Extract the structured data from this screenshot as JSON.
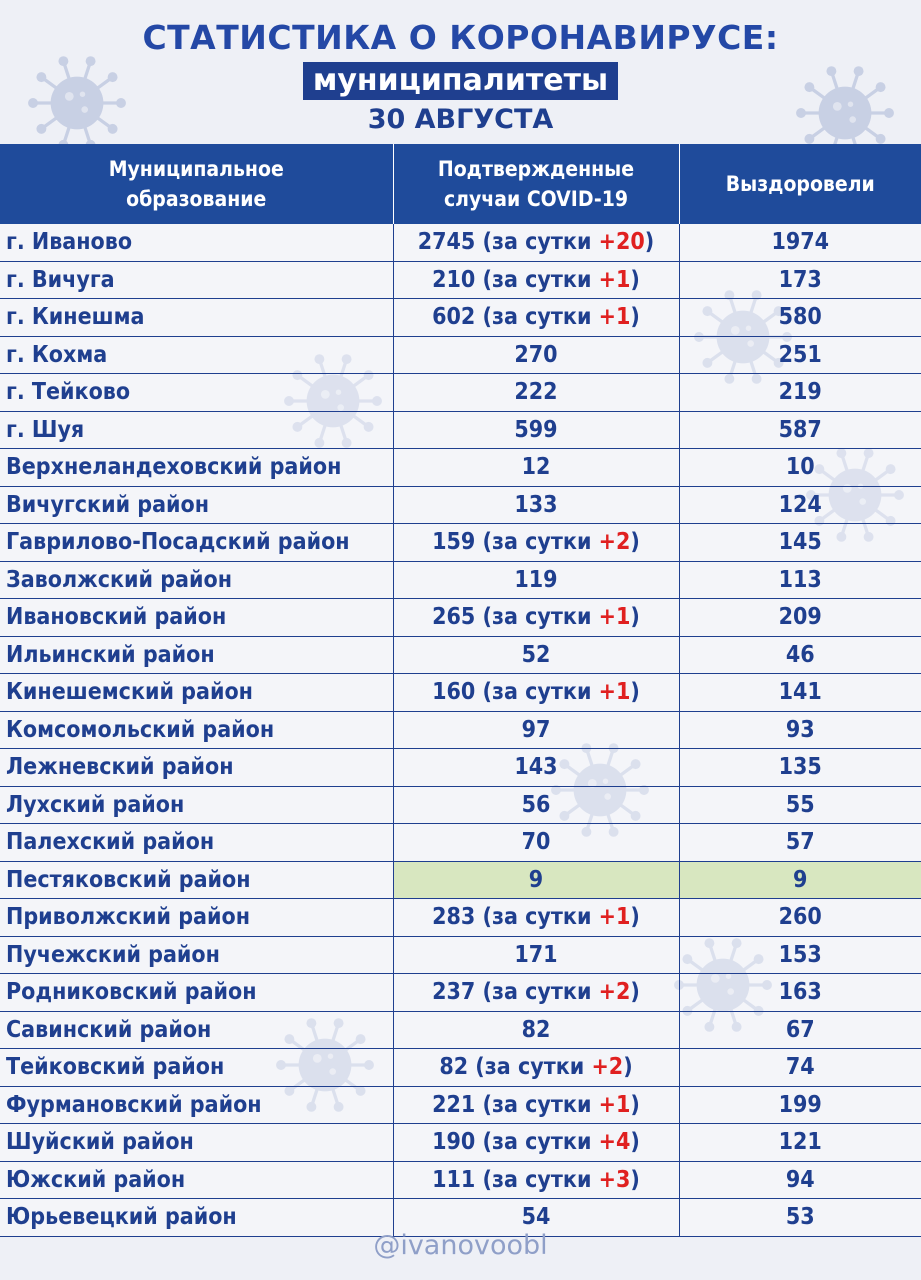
{
  "header": {
    "title": "СТАТИСТИКА О КОРОНАВИРУСЕ:",
    "subtitle": "муниципалитеты",
    "date": "30 АВГУСТА"
  },
  "table": {
    "columns": [
      "Муниципальное образование",
      "Подтвержденные случаи COVID-19",
      "Выздоровели"
    ],
    "daily_prefix": "за сутки",
    "rows": [
      {
        "name": "г. Иваново",
        "cases": "2745",
        "daily": "+20",
        "recovered": "1974"
      },
      {
        "name": "г. Вичуга",
        "cases": "210",
        "daily": "+1",
        "recovered": "173"
      },
      {
        "name": "г. Кинешма",
        "cases": "602",
        "daily": "+1",
        "recovered": "580"
      },
      {
        "name": "г. Кохма",
        "cases": "270",
        "daily": "",
        "recovered": "251"
      },
      {
        "name": "г. Тейково",
        "cases": "222",
        "daily": "",
        "recovered": "219"
      },
      {
        "name": "г. Шуя",
        "cases": "599",
        "daily": "",
        "recovered": "587"
      },
      {
        "name": "Верхнеландеховский район",
        "cases": "12",
        "daily": "",
        "recovered": "10"
      },
      {
        "name": "Вичугский район",
        "cases": "133",
        "daily": "",
        "recovered": "124"
      },
      {
        "name": "Гаврилово-Посадский район",
        "cases": "159",
        "daily": "+2",
        "recovered": "145"
      },
      {
        "name": "Заволжский район",
        "cases": "119",
        "daily": "",
        "recovered": "113"
      },
      {
        "name": "Ивановский район",
        "cases": "265",
        "daily": "+1",
        "recovered": "209"
      },
      {
        "name": "Ильинский район",
        "cases": "52",
        "daily": "",
        "recovered": "46"
      },
      {
        "name": "Кинешемский район",
        "cases": "160",
        "daily": "+1",
        "recovered": "141"
      },
      {
        "name": "Комсомольский район",
        "cases": "97",
        "daily": "",
        "recovered": "93"
      },
      {
        "name": "Лежневский район",
        "cases": "143",
        "daily": "",
        "recovered": "135"
      },
      {
        "name": "Лухский район",
        "cases": "56",
        "daily": "",
        "recovered": "55"
      },
      {
        "name": "Палехский район",
        "cases": "70",
        "daily": "",
        "recovered": "57"
      },
      {
        "name": "Пестяковский район",
        "cases": "9",
        "daily": "",
        "recovered": "9",
        "highlight": true
      },
      {
        "name": "Приволжский район",
        "cases": "283",
        "daily": "+1",
        "recovered": "260"
      },
      {
        "name": "Пучежский район",
        "cases": "171",
        "daily": "",
        "recovered": "153"
      },
      {
        "name": "Родниковский район",
        "cases": "237",
        "daily": "+2",
        "recovered": "163"
      },
      {
        "name": "Савинский район",
        "cases": "82",
        "daily": "",
        "recovered": "67"
      },
      {
        "name": "Тейковский район",
        "cases": "82",
        "daily": "+2",
        "recovered": "74"
      },
      {
        "name": "Фурмановский район",
        "cases": "221",
        "daily": "+1",
        "recovered": "199"
      },
      {
        "name": "Шуйский район",
        "cases": "190",
        "daily": "+4",
        "recovered": "121"
      },
      {
        "name": "Южский район",
        "cases": "111",
        "daily": "+3",
        "recovered": "94"
      },
      {
        "name": "Юрьевецкий район",
        "cases": "54",
        "daily": "",
        "recovered": "53"
      }
    ]
  },
  "footer": {
    "handle": "@ivanovoobl"
  },
  "colors": {
    "accent": "#1f3f8f",
    "header_bg": "#1f4b9b",
    "increase": "#e02020",
    "highlight": "#d8e7c0",
    "virus": "#aab6d6"
  },
  "icons": [
    "virus-icon"
  ]
}
